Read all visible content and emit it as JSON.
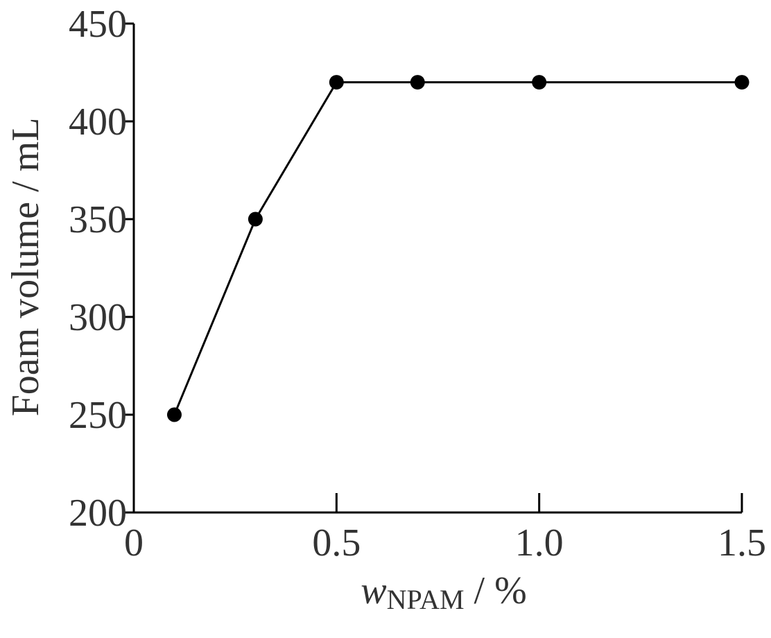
{
  "chart_data": {
    "type": "line",
    "ylabel": "Foam volume / mL",
    "xlabel": {
      "symbol": "w",
      "subscript": "NPAM",
      "rest": "/ %"
    },
    "x": [
      0.1,
      0.3,
      0.5,
      0.7,
      1.0,
      1.5
    ],
    "series": [
      {
        "name": "Foam volume",
        "color": "#000000",
        "values": [
          250,
          350,
          420,
          420,
          420,
          420
        ]
      }
    ],
    "xlim": [
      0,
      1.5
    ],
    "xticks": [
      0,
      0.5,
      {
        "value": 1,
        "label": "1.0"
      },
      1.5
    ],
    "ylim": [
      200,
      450
    ],
    "yticks": [
      200,
      250,
      300,
      350,
      400,
      450
    ],
    "grid": false
  }
}
